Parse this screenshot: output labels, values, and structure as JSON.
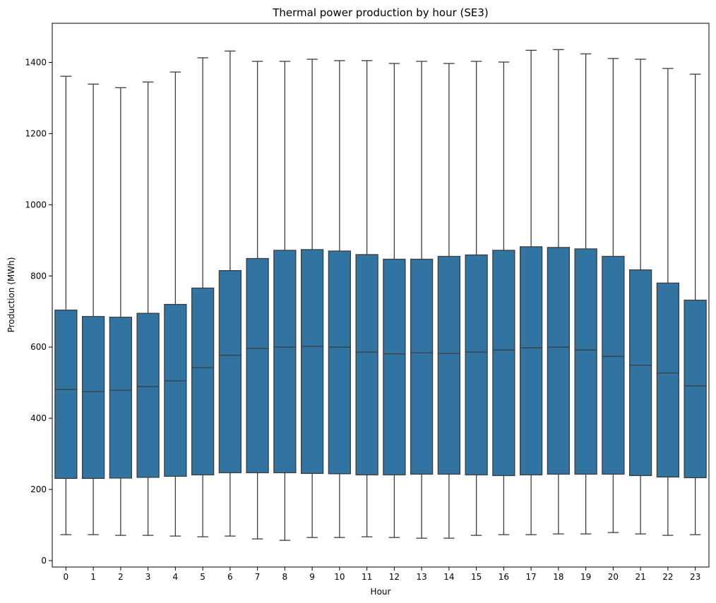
{
  "chart_data": {
    "type": "box",
    "title": "Thermal power production by hour (SE3)",
    "xlabel": "Hour",
    "ylabel": "Production (MWh)",
    "categories": [
      "0",
      "1",
      "2",
      "3",
      "4",
      "5",
      "6",
      "7",
      "8",
      "9",
      "10",
      "11",
      "12",
      "13",
      "14",
      "15",
      "16",
      "17",
      "18",
      "19",
      "20",
      "21",
      "22",
      "23"
    ],
    "y_ticks": [
      0,
      200,
      400,
      600,
      800,
      1000,
      1200,
      1400
    ],
    "y_tick_labels": [
      "0",
      "200",
      "400",
      "600",
      "800",
      "1000",
      "1200",
      "1400"
    ],
    "ylim": [
      -18,
      1510
    ],
    "grid": false,
    "box_color": "#3274a1",
    "line_color": "#3d3d3d",
    "boxes": [
      {
        "whisker_low": 73,
        "q1": 231,
        "median": 481,
        "q3": 704,
        "whisker_high": 1361
      },
      {
        "whisker_low": 73,
        "q1": 231,
        "median": 475,
        "q3": 686,
        "whisker_high": 1339
      },
      {
        "whisker_low": 71,
        "q1": 232,
        "median": 479,
        "q3": 684,
        "whisker_high": 1329
      },
      {
        "whisker_low": 71,
        "q1": 234,
        "median": 489,
        "q3": 695,
        "whisker_high": 1345
      },
      {
        "whisker_low": 69,
        "q1": 237,
        "median": 505,
        "q3": 720,
        "whisker_high": 1373
      },
      {
        "whisker_low": 67,
        "q1": 241,
        "median": 542,
        "q3": 766,
        "whisker_high": 1413
      },
      {
        "whisker_low": 69,
        "q1": 247,
        "median": 577,
        "q3": 815,
        "whisker_high": 1432
      },
      {
        "whisker_low": 61,
        "q1": 247,
        "median": 596,
        "q3": 849,
        "whisker_high": 1403
      },
      {
        "whisker_low": 57,
        "q1": 247,
        "median": 600,
        "q3": 872,
        "whisker_high": 1403
      },
      {
        "whisker_low": 65,
        "q1": 245,
        "median": 602,
        "q3": 874,
        "whisker_high": 1409
      },
      {
        "whisker_low": 65,
        "q1": 244,
        "median": 600,
        "q3": 870,
        "whisker_high": 1405
      },
      {
        "whisker_low": 67,
        "q1": 241,
        "median": 586,
        "q3": 860,
        "whisker_high": 1405
      },
      {
        "whisker_low": 65,
        "q1": 241,
        "median": 581,
        "q3": 847,
        "whisker_high": 1397
      },
      {
        "whisker_low": 63,
        "q1": 243,
        "median": 584,
        "q3": 847,
        "whisker_high": 1403
      },
      {
        "whisker_low": 63,
        "q1": 243,
        "median": 582,
        "q3": 855,
        "whisker_high": 1397
      },
      {
        "whisker_low": 71,
        "q1": 241,
        "median": 586,
        "q3": 859,
        "whisker_high": 1403
      },
      {
        "whisker_low": 73,
        "q1": 239,
        "median": 592,
        "q3": 872,
        "whisker_high": 1401
      },
      {
        "whisker_low": 73,
        "q1": 241,
        "median": 598,
        "q3": 882,
        "whisker_high": 1434
      },
      {
        "whisker_low": 75,
        "q1": 243,
        "median": 600,
        "q3": 880,
        "whisker_high": 1436
      },
      {
        "whisker_low": 75,
        "q1": 243,
        "median": 592,
        "q3": 876,
        "whisker_high": 1424
      },
      {
        "whisker_low": 79,
        "q1": 243,
        "median": 574,
        "q3": 855,
        "whisker_high": 1411
      },
      {
        "whisker_low": 75,
        "q1": 239,
        "median": 549,
        "q3": 817,
        "whisker_high": 1409
      },
      {
        "whisker_low": 71,
        "q1": 235,
        "median": 527,
        "q3": 780,
        "whisker_high": 1383
      },
      {
        "whisker_low": 73,
        "q1": 233,
        "median": 491,
        "q3": 732,
        "whisker_high": 1367
      }
    ]
  }
}
